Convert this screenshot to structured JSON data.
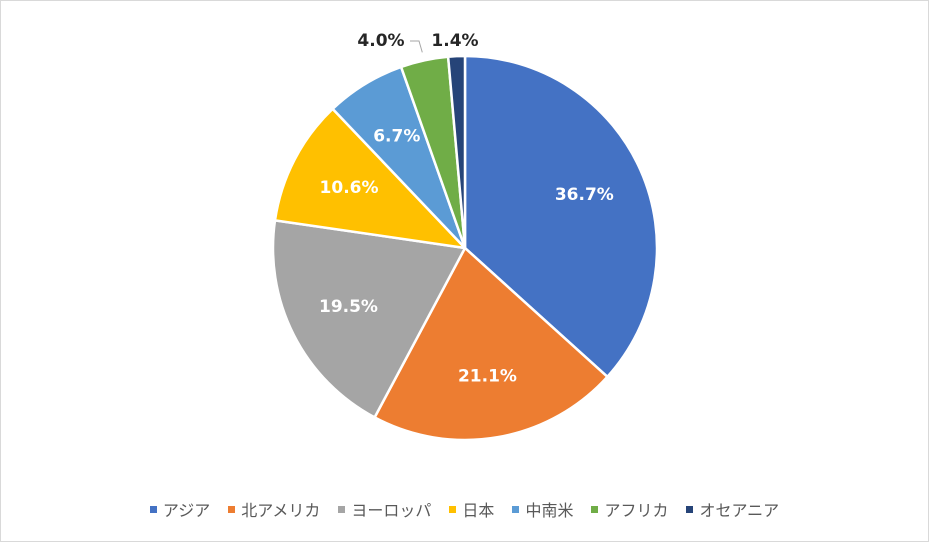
{
  "chart_data": {
    "type": "pie",
    "title": "",
    "categories": [
      "アジア",
      "北アメリカ",
      "ヨーロッパ",
      "日本",
      "中南米",
      "アフリカ",
      "オセアニア"
    ],
    "values": [
      36.7,
      21.1,
      19.5,
      10.6,
      6.7,
      4.0,
      1.4
    ],
    "labels": [
      "36.7%",
      "21.1%",
      "19.5%",
      "10.6%",
      "6.7%",
      "4.0%",
      "1.4%"
    ],
    "colors": [
      "#4472c4",
      "#ed7d31",
      "#a5a5a5",
      "#ffc000",
      "#5b9bd5",
      "#70ad47",
      "#264478"
    ],
    "legend_position": "bottom"
  }
}
